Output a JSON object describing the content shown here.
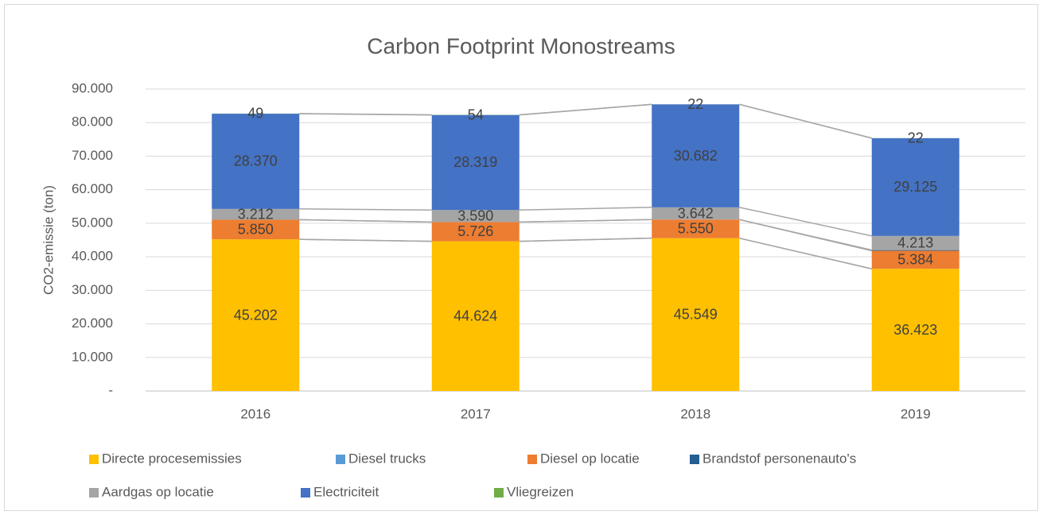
{
  "chart_data": {
    "type": "stacked_bar",
    "title": "Carbon Footprint Monostreams",
    "y_label": "CO2-emissie (ton)",
    "categories": [
      "2016",
      "2017",
      "2018",
      "2019"
    ],
    "series": [
      {
        "name": "Directe procesemissies",
        "color": "#FFC000",
        "values": [
          45202,
          44624,
          45549,
          36423
        ],
        "value_labels": [
          "45.202",
          "44.624",
          "45.549",
          "36.423"
        ]
      },
      {
        "name": "Diesel trucks",
        "color": "#5B9BD5",
        "values": [
          0,
          0,
          0,
          0
        ]
      },
      {
        "name": "Diesel op locatie",
        "color": "#ED7D31",
        "values": [
          5850,
          5726,
          5550,
          5384
        ],
        "value_labels": [
          "5.850",
          "5.726",
          "5.550",
          "5.384"
        ]
      },
      {
        "name": "Brandstof personenauto's",
        "color": "#255E91",
        "values": [
          0,
          0,
          0,
          200
        ]
      },
      {
        "name": "Aardgas op locatie",
        "color": "#A5A5A5",
        "values": [
          3212,
          3590,
          3642,
          4213
        ],
        "value_labels": [
          "3.212",
          "3.590",
          "3.642",
          "4.213"
        ]
      },
      {
        "name": "Electriciteit",
        "color": "#4472C4",
        "values": [
          28370,
          28319,
          30682,
          29125
        ],
        "value_labels": [
          "28.370",
          "28.319",
          "30.682",
          "29.125"
        ]
      },
      {
        "name": "Vliegreizen",
        "color": "#70AD47",
        "values": [
          49,
          54,
          22,
          22
        ]
      }
    ],
    "ylim": [
      0,
      90000
    ],
    "yticks": [
      {
        "value": 0,
        "label": "-"
      },
      {
        "value": 10000,
        "label": "10.000"
      },
      {
        "value": 20000,
        "label": "20.000"
      },
      {
        "value": 30000,
        "label": "30.000"
      },
      {
        "value": 40000,
        "label": "40.000"
      },
      {
        "value": 50000,
        "label": "50.000"
      },
      {
        "value": 60000,
        "label": "60.000"
      },
      {
        "value": 70000,
        "label": "70.000"
      },
      {
        "value": 80000,
        "label": "80.000"
      },
      {
        "value": 90000,
        "label": "90.000"
      }
    ],
    "grid": true,
    "legend": "bottom"
  }
}
